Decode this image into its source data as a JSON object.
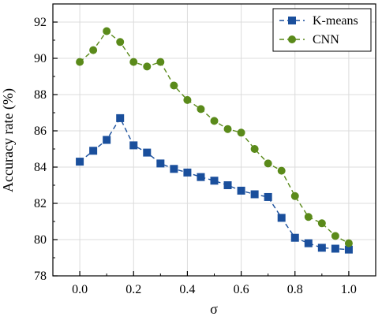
{
  "chart_data": {
    "type": "line",
    "title": "",
    "xlabel": "σ",
    "ylabel": "Accuracy rate (%)",
    "xlim": [
      -0.1,
      1.1
    ],
    "ylim": [
      78,
      93
    ],
    "x_ticks": [
      0.0,
      0.2,
      0.4,
      0.6,
      0.8,
      1.0
    ],
    "x_tick_labels": [
      "0.0",
      "0.2",
      "0.4",
      "0.6",
      "0.8",
      "1.0"
    ],
    "y_ticks": [
      78,
      80,
      82,
      84,
      86,
      88,
      90,
      92
    ],
    "y_tick_labels": [
      "78",
      "80",
      "82",
      "84",
      "86",
      "88",
      "90",
      "92"
    ],
    "grid": true,
    "legend_position": "top-right",
    "x": [
      0.0,
      0.05,
      0.1,
      0.15,
      0.2,
      0.25,
      0.3,
      0.35,
      0.4,
      0.45,
      0.5,
      0.55,
      0.6,
      0.65,
      0.7,
      0.75,
      0.8,
      0.85,
      0.9,
      0.95,
      1.0
    ],
    "series": [
      {
        "name": "K-means",
        "color": "#1a4f9c",
        "marker": "square",
        "line_style": "dashed",
        "values": [
          84.3,
          84.9,
          85.5,
          86.7,
          85.2,
          84.8,
          84.2,
          83.9,
          83.7,
          83.45,
          83.25,
          83.0,
          82.7,
          82.5,
          82.35,
          81.2,
          80.1,
          79.8,
          79.55,
          79.5,
          79.45
        ]
      },
      {
        "name": "CNN",
        "color": "#5a8a1a",
        "marker": "circle",
        "line_style": "dashed",
        "values": [
          89.8,
          90.45,
          91.5,
          90.9,
          89.8,
          89.55,
          89.8,
          88.5,
          87.7,
          87.2,
          86.55,
          86.1,
          85.9,
          85.0,
          84.2,
          83.8,
          82.4,
          81.25,
          80.9,
          80.2,
          79.8
        ]
      }
    ]
  }
}
